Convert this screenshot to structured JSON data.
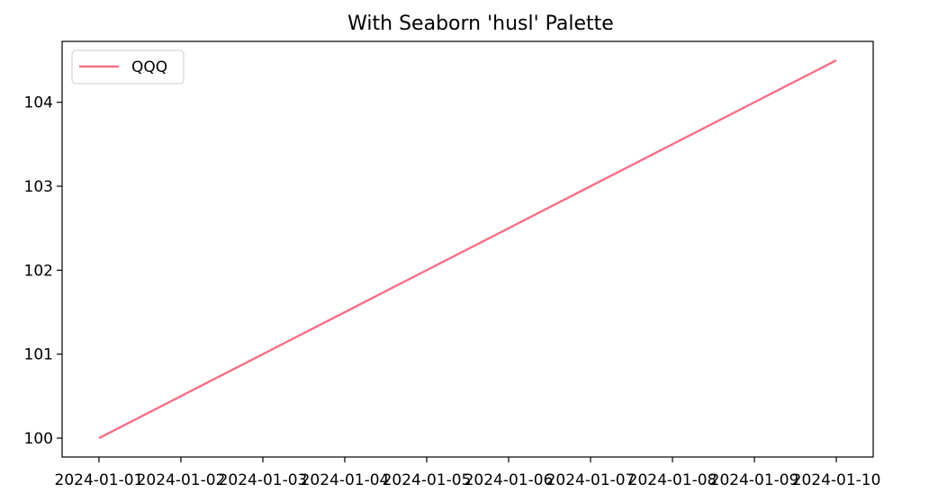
{
  "chart_data": {
    "type": "line",
    "title": "With Seaborn 'husl' Palette",
    "xlabel": "",
    "ylabel": "",
    "x": [
      "2024-01-01",
      "2024-01-02",
      "2024-01-03",
      "2024-01-04",
      "2024-01-05",
      "2024-01-06",
      "2024-01-07",
      "2024-01-08",
      "2024-01-09",
      "2024-01-10"
    ],
    "series": [
      {
        "name": "QQQ",
        "color": "#f77189",
        "values": [
          100.0,
          100.5,
          101.0,
          101.5,
          102.0,
          102.5,
          103.0,
          103.5,
          104.0,
          104.5
        ]
      }
    ],
    "xticks": [
      "2024-01-01",
      "2024-01-02",
      "2024-01-03",
      "2024-01-04",
      "2024-01-05",
      "2024-01-06",
      "2024-01-07",
      "2024-01-08",
      "2024-01-09",
      "2024-01-10"
    ],
    "yticks": [
      100,
      101,
      102,
      103,
      104
    ],
    "ylim": [
      99.775,
      104.725
    ],
    "grid": false,
    "legend": "upper-left"
  }
}
